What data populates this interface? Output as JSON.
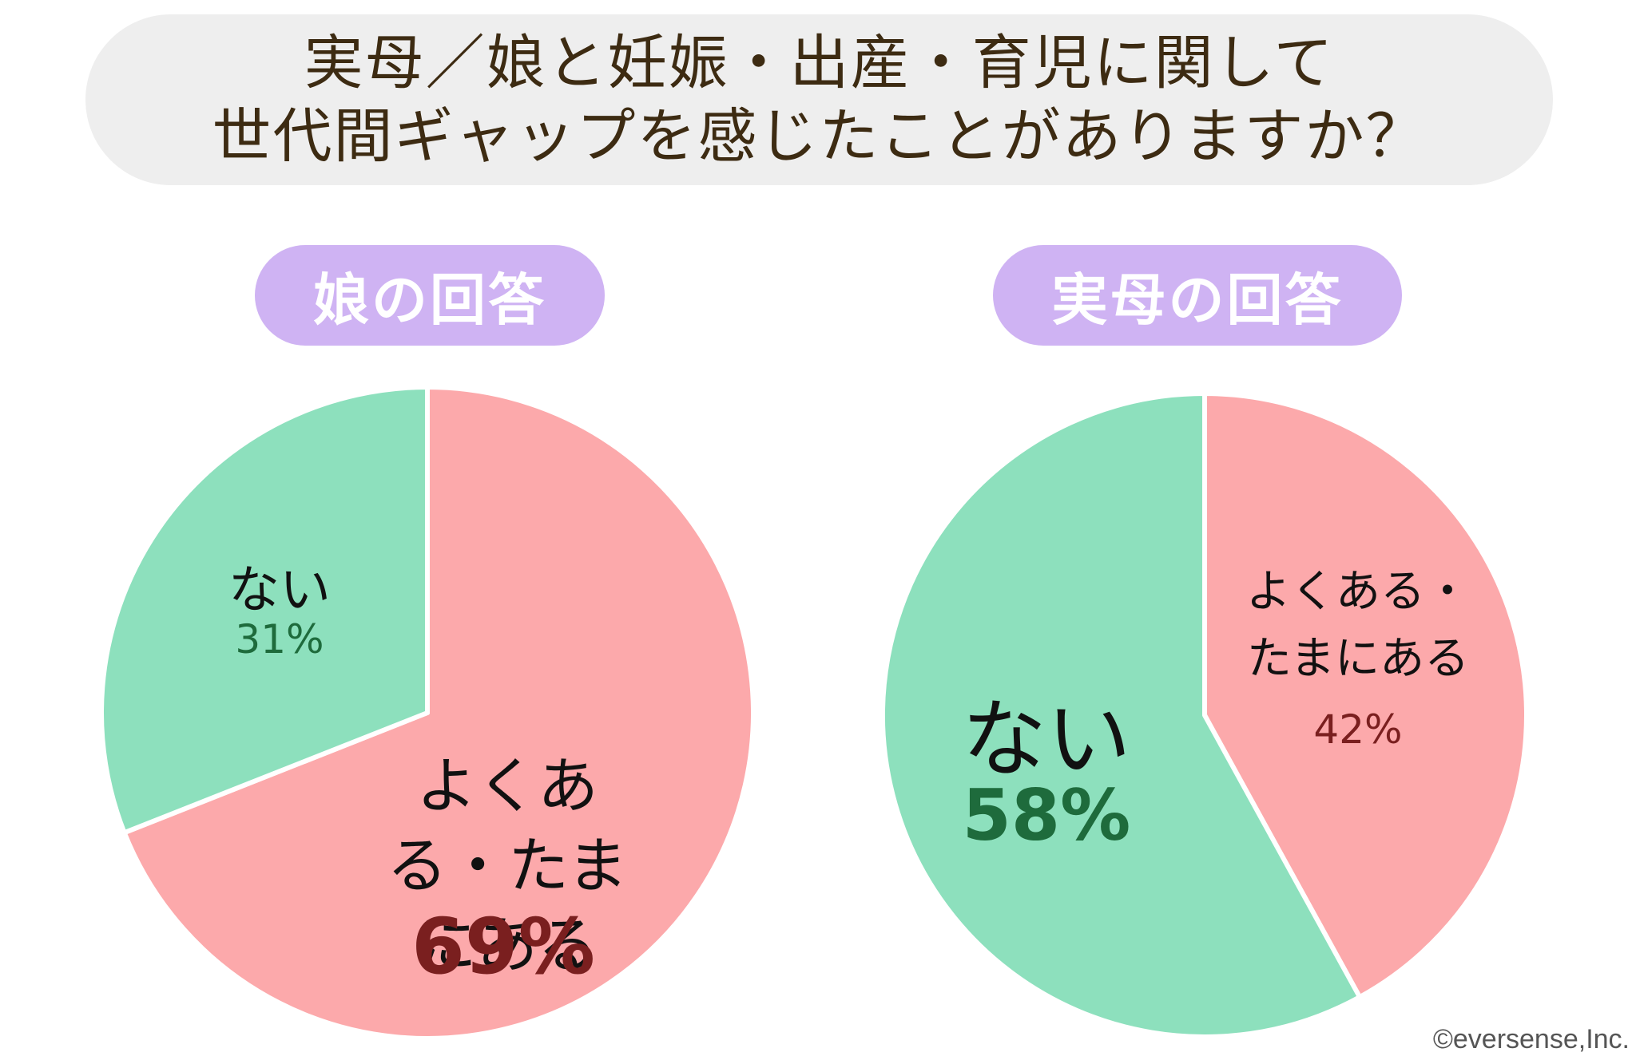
{
  "title": {
    "line1": "実母／娘と妊娠・出産・育児に関して",
    "line2": "世代間ギャップを感じたことがありますか？"
  },
  "credit": "©eversense,Inc.",
  "chart_data": [
    {
      "type": "pie",
      "title": "娘の回答",
      "slices": [
        {
          "label": "よくある・たまにある",
          "value": 69,
          "value_label": "69%",
          "color": "#fca9ab",
          "text_color": "#7a1f1f"
        },
        {
          "label": "ない",
          "value": 31,
          "value_label": "31%",
          "color": "#8de0bd",
          "text_color": "#1e6b3c"
        }
      ]
    },
    {
      "type": "pie",
      "title": "実母の回答",
      "slices": [
        {
          "label": "よくある・たまにある",
          "value": 42,
          "value_label": "42%",
          "color": "#fca9ab",
          "text_color": "#7a1f1f"
        },
        {
          "label": "ない",
          "value": 58,
          "value_label": "58%",
          "color": "#8de0bd",
          "text_color": "#1e6b3c"
        }
      ]
    }
  ]
}
